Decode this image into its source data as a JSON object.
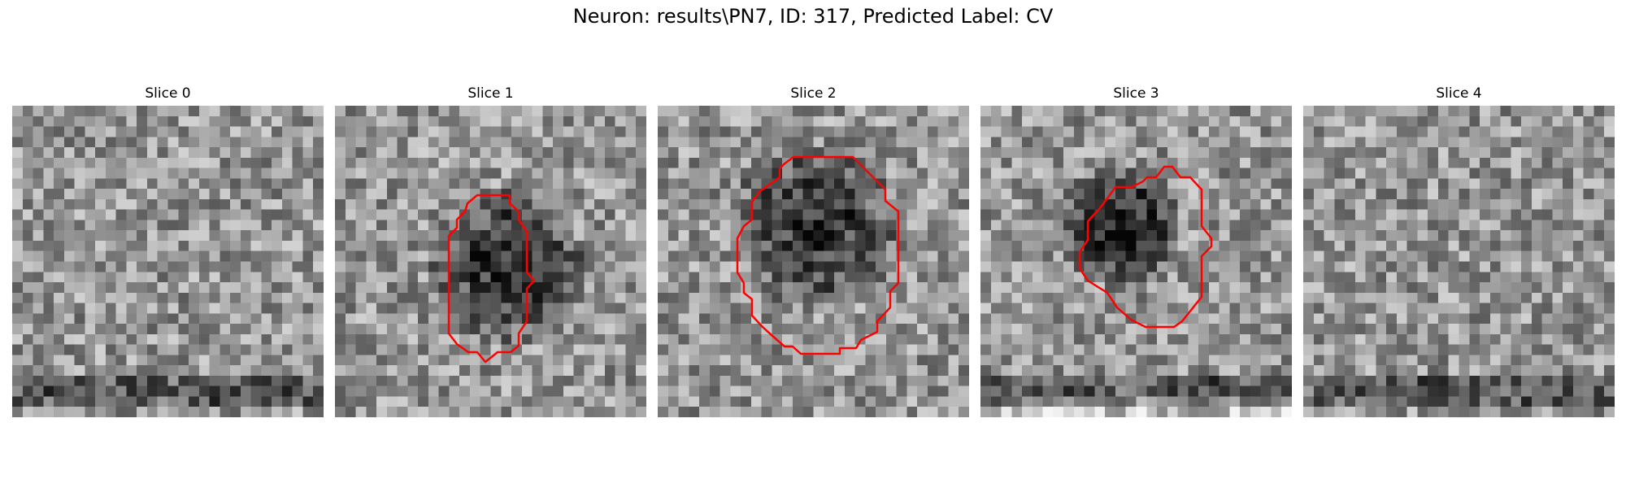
{
  "title": "Neuron: results\\PN7, ID: 317, Predicted Label: CV",
  "contour_color": "#ff0000",
  "panels": [
    {
      "label": "Slice 0",
      "has_contour": false
    },
    {
      "label": "Slice 1",
      "has_contour": true
    },
    {
      "label": "Slice 2",
      "has_contour": true
    },
    {
      "label": "Slice 3",
      "has_contour": true
    },
    {
      "label": "Slice 4",
      "has_contour": false
    }
  ]
}
